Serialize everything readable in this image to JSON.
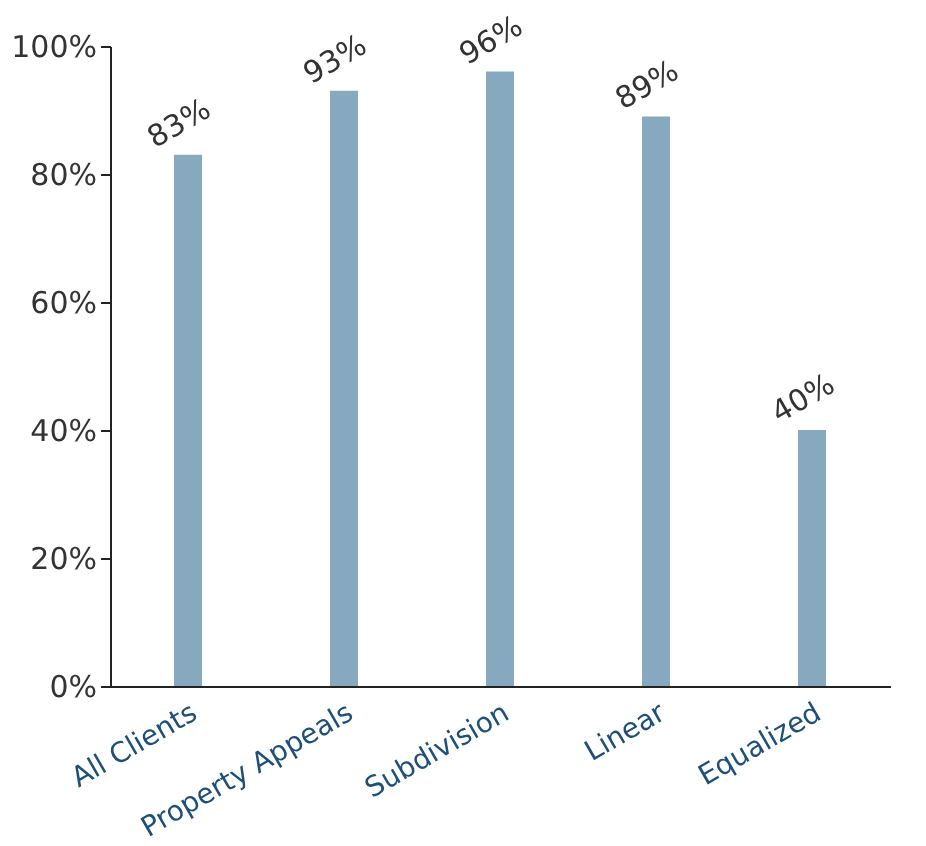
{
  "chart_data": {
    "type": "bar",
    "categories": [
      "All Clients",
      "Property Appeals",
      "Subdivision",
      "Linear",
      "Equalized"
    ],
    "values": [
      83,
      93,
      96,
      89,
      40
    ],
    "value_labels": [
      "83%",
      "93%",
      "96%",
      "89%",
      "40%"
    ],
    "color": "#86a9c0",
    "ylim": [
      0,
      100
    ],
    "yticks": [
      {
        "value": 0,
        "label": "0%"
      },
      {
        "value": 20,
        "label": "20%"
      },
      {
        "value": 40,
        "label": "40%"
      },
      {
        "value": 60,
        "label": "60%"
      },
      {
        "value": 80,
        "label": "80%"
      },
      {
        "value": 100,
        "label": "100%"
      }
    ],
    "grid": false
  }
}
